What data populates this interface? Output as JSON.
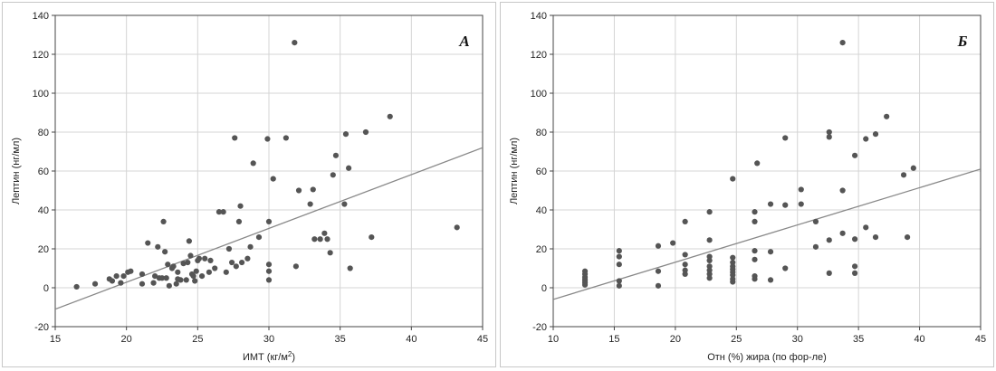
{
  "chart_data": [
    {
      "type": "scatter",
      "panel_label": "А",
      "xlabel": "ИМТ (кг/м",
      "xlabel_sup": "2",
      "xlabel_tail": ")",
      "ylabel": "Лептин (нг/мл)",
      "xlim": [
        15,
        45
      ],
      "ylim": [
        -20,
        140
      ],
      "xticks": [
        15,
        20,
        25,
        30,
        35,
        40,
        45
      ],
      "yticks": [
        -20,
        0,
        20,
        40,
        60,
        80,
        100,
        120,
        140
      ],
      "point_color": "#555555",
      "line_color": "#888888",
      "fit_line": [
        [
          15,
          -11
        ],
        [
          45,
          72
        ]
      ],
      "points": [
        [
          16.5,
          0.5
        ],
        [
          17.8,
          2
        ],
        [
          18.8,
          4.5
        ],
        [
          19,
          3.5
        ],
        [
          19.3,
          6
        ],
        [
          19.6,
          2.5
        ],
        [
          19.8,
          6
        ],
        [
          20.1,
          8
        ],
        [
          20.3,
          8.5
        ],
        [
          21.1,
          7
        ],
        [
          21.1,
          2
        ],
        [
          21.5,
          23
        ],
        [
          21.9,
          2.5
        ],
        [
          22.0,
          6
        ],
        [
          22.2,
          21
        ],
        [
          22.3,
          5
        ],
        [
          22.5,
          5
        ],
        [
          22.6,
          34
        ],
        [
          22.7,
          18.5
        ],
        [
          22.8,
          5
        ],
        [
          22.9,
          12
        ],
        [
          23,
          1
        ],
        [
          23.2,
          10
        ],
        [
          23.3,
          11
        ],
        [
          23.5,
          2
        ],
        [
          23.6,
          8
        ],
        [
          23.6,
          4.5
        ],
        [
          23.8,
          4
        ],
        [
          24.0,
          12.5
        ],
        [
          24.2,
          4
        ],
        [
          24.3,
          13
        ],
        [
          24.4,
          24
        ],
        [
          24.5,
          16.5
        ],
        [
          24.6,
          7
        ],
        [
          24.7,
          6
        ],
        [
          24.8,
          3.5
        ],
        [
          24.9,
          8.5
        ],
        [
          25.0,
          14
        ],
        [
          25.1,
          15
        ],
        [
          25.3,
          6
        ],
        [
          25.5,
          15
        ],
        [
          25.8,
          8
        ],
        [
          25.9,
          14
        ],
        [
          26.2,
          10
        ],
        [
          26.5,
          39
        ],
        [
          26.8,
          39
        ],
        [
          27.0,
          8
        ],
        [
          27.2,
          20
        ],
        [
          27.4,
          13
        ],
        [
          27.6,
          77
        ],
        [
          27.7,
          11
        ],
        [
          27.9,
          34
        ],
        [
          28.0,
          42
        ],
        [
          28.1,
          13
        ],
        [
          28.5,
          15
        ],
        [
          28.7,
          21
        ],
        [
          28.9,
          64
        ],
        [
          29.3,
          26
        ],
        [
          29.9,
          76.5
        ],
        [
          30,
          34
        ],
        [
          30,
          12
        ],
        [
          30,
          8.5
        ],
        [
          30,
          4
        ],
        [
          30.3,
          56
        ],
        [
          31.2,
          77
        ],
        [
          31.8,
          126
        ],
        [
          31.9,
          11
        ],
        [
          32.1,
          50
        ],
        [
          32.9,
          43
        ],
        [
          33.1,
          50.5
        ],
        [
          33.2,
          25
        ],
        [
          33.6,
          25
        ],
        [
          33.9,
          28
        ],
        [
          34.1,
          25
        ],
        [
          34.3,
          18
        ],
        [
          34.5,
          58
        ],
        [
          34.7,
          68
        ],
        [
          35.3,
          43
        ],
        [
          35.4,
          79
        ],
        [
          35.6,
          61.5
        ],
        [
          35.7,
          10
        ],
        [
          36.8,
          80
        ],
        [
          37.2,
          26
        ],
        [
          38.5,
          88
        ],
        [
          43.2,
          31
        ]
      ]
    },
    {
      "type": "scatter",
      "panel_label": "Б",
      "xlabel": "Отн (%) жира (по фор-ле)",
      "xlabel_sup": "",
      "xlabel_tail": "",
      "ylabel": "Лептин (нг/мл)",
      "xlim": [
        10,
        45
      ],
      "ylim": [
        -20,
        140
      ],
      "xticks": [
        10,
        15,
        20,
        25,
        30,
        35,
        40,
        45
      ],
      "yticks": [
        -20,
        0,
        20,
        40,
        60,
        80,
        100,
        120,
        140
      ],
      "point_color": "#555555",
      "line_color": "#888888",
      "fit_line": [
        [
          10,
          -6
        ],
        [
          45,
          61
        ]
      ],
      "points": [
        [
          12.6,
          8.5
        ],
        [
          12.6,
          7
        ],
        [
          12.6,
          5.5
        ],
        [
          12.6,
          4.5
        ],
        [
          12.6,
          3.5
        ],
        [
          12.6,
          2.5
        ],
        [
          12.6,
          1.5
        ],
        [
          15.4,
          19
        ],
        [
          15.4,
          16
        ],
        [
          15.4,
          12
        ],
        [
          15.4,
          3.5
        ],
        [
          15.4,
          1
        ],
        [
          18.6,
          21.5
        ],
        [
          18.6,
          8.5
        ],
        [
          18.6,
          1
        ],
        [
          19.8,
          23
        ],
        [
          20.8,
          34
        ],
        [
          20.8,
          17
        ],
        [
          20.8,
          12
        ],
        [
          20.8,
          9
        ],
        [
          20.8,
          7
        ],
        [
          22.8,
          39
        ],
        [
          22.8,
          24.5
        ],
        [
          22.8,
          16
        ],
        [
          22.8,
          14
        ],
        [
          22.8,
          11
        ],
        [
          22.8,
          9
        ],
        [
          22.8,
          7
        ],
        [
          22.8,
          5
        ],
        [
          24.7,
          56
        ],
        [
          24.7,
          15.5
        ],
        [
          24.7,
          13
        ],
        [
          24.7,
          11
        ],
        [
          24.7,
          9.5
        ],
        [
          24.7,
          8
        ],
        [
          24.7,
          6.5
        ],
        [
          24.7,
          4.5
        ],
        [
          24.7,
          3
        ],
        [
          26.5,
          39
        ],
        [
          26.5,
          34
        ],
        [
          26.5,
          19
        ],
        [
          26.5,
          14.5
        ],
        [
          26.5,
          6
        ],
        [
          26.5,
          4.5
        ],
        [
          26.7,
          64
        ],
        [
          27.8,
          43
        ],
        [
          27.8,
          18.5
        ],
        [
          27.8,
          4
        ],
        [
          29.0,
          77
        ],
        [
          29.0,
          10
        ],
        [
          29.0,
          42.5
        ],
        [
          30.3,
          50.5
        ],
        [
          30.3,
          43
        ],
        [
          31.5,
          34
        ],
        [
          31.5,
          21
        ],
        [
          32.6,
          80
        ],
        [
          32.6,
          77.5
        ],
        [
          32.6,
          24.5
        ],
        [
          32.6,
          7.5
        ],
        [
          33.7,
          126
        ],
        [
          33.7,
          50
        ],
        [
          33.7,
          28
        ],
        [
          34.7,
          68
        ],
        [
          34.7,
          25
        ],
        [
          34.7,
          11
        ],
        [
          34.7,
          7.5
        ],
        [
          35.6,
          76.5
        ],
        [
          35.6,
          31
        ],
        [
          36.4,
          79
        ],
        [
          36.4,
          26
        ],
        [
          37.3,
          88
        ],
        [
          38.7,
          58
        ],
        [
          39.0,
          26
        ],
        [
          39.5,
          61.5
        ]
      ]
    }
  ]
}
